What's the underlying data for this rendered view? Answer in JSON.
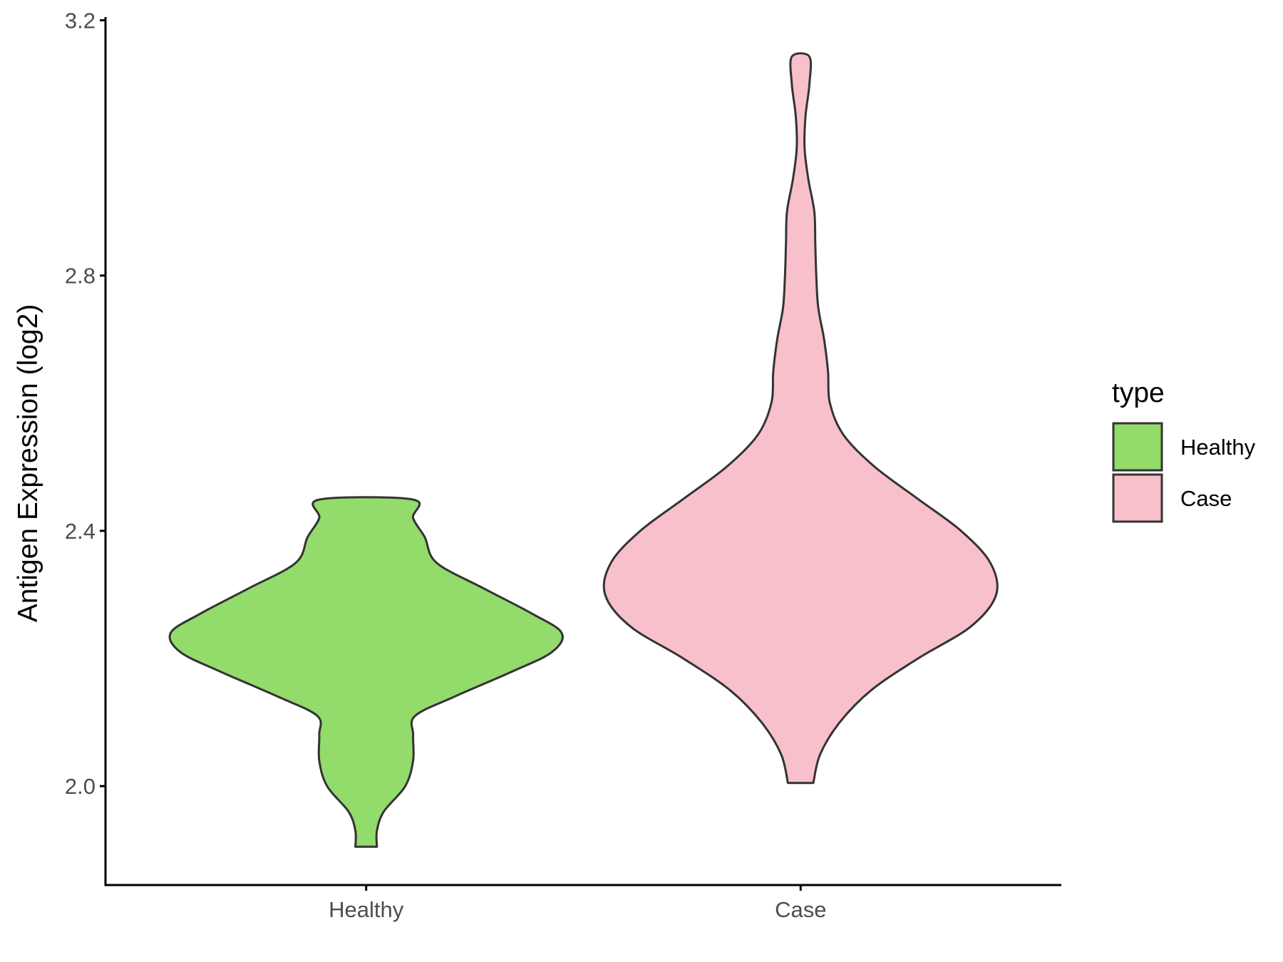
{
  "chart_data": {
    "type": "violin",
    "title": "",
    "xlabel": "",
    "ylabel": "Antigen Expression (log2)",
    "ylim": [
      1.845,
      3.205
    ],
    "y_ticks": [
      "2.0",
      "2.4",
      "2.8",
      "3.2"
    ],
    "y_tick_values": [
      2.0,
      2.4,
      2.8,
      3.2
    ],
    "categories": [
      "Healthy",
      "Case"
    ],
    "grid": false,
    "legend": {
      "title": "type",
      "placement": "right",
      "entries": [
        {
          "label": "Healthy",
          "color": "#93DB6B"
        },
        {
          "label": "Case",
          "color": "#F8C0CB"
        }
      ]
    },
    "series": [
      {
        "name": "Healthy",
        "color": "#93DB6B",
        "min": 1.905,
        "max": 2.449,
        "density_profile": [
          [
            1.905,
            0.055
          ],
          [
            1.93,
            0.055
          ],
          [
            1.96,
            0.09
          ],
          [
            2.0,
            0.2
          ],
          [
            2.04,
            0.24
          ],
          [
            2.08,
            0.24
          ],
          [
            2.11,
            0.25
          ],
          [
            2.14,
            0.45
          ],
          [
            2.18,
            0.75
          ],
          [
            2.21,
            0.95
          ],
          [
            2.24,
            1.0
          ],
          [
            2.27,
            0.85
          ],
          [
            2.31,
            0.6
          ],
          [
            2.35,
            0.36
          ],
          [
            2.39,
            0.3
          ],
          [
            2.42,
            0.24
          ],
          [
            2.449,
            0.24
          ]
        ]
      },
      {
        "name": "Case",
        "color": "#F8C0CB",
        "min": 2.005,
        "max": 3.143,
        "density_profile": [
          [
            2.005,
            0.065
          ],
          [
            2.05,
            0.1
          ],
          [
            2.1,
            0.2
          ],
          [
            2.15,
            0.36
          ],
          [
            2.2,
            0.6
          ],
          [
            2.25,
            0.87
          ],
          [
            2.3,
            1.0
          ],
          [
            2.35,
            0.97
          ],
          [
            2.4,
            0.82
          ],
          [
            2.45,
            0.6
          ],
          [
            2.5,
            0.38
          ],
          [
            2.55,
            0.22
          ],
          [
            2.6,
            0.15
          ],
          [
            2.65,
            0.14
          ],
          [
            2.7,
            0.12
          ],
          [
            2.75,
            0.09
          ],
          [
            2.8,
            0.08
          ],
          [
            2.85,
            0.075
          ],
          [
            2.9,
            0.07
          ],
          [
            2.95,
            0.04
          ],
          [
            3.0,
            0.02
          ],
          [
            3.05,
            0.025
          ],
          [
            3.1,
            0.045
          ],
          [
            3.143,
            0.045
          ]
        ]
      }
    ]
  }
}
